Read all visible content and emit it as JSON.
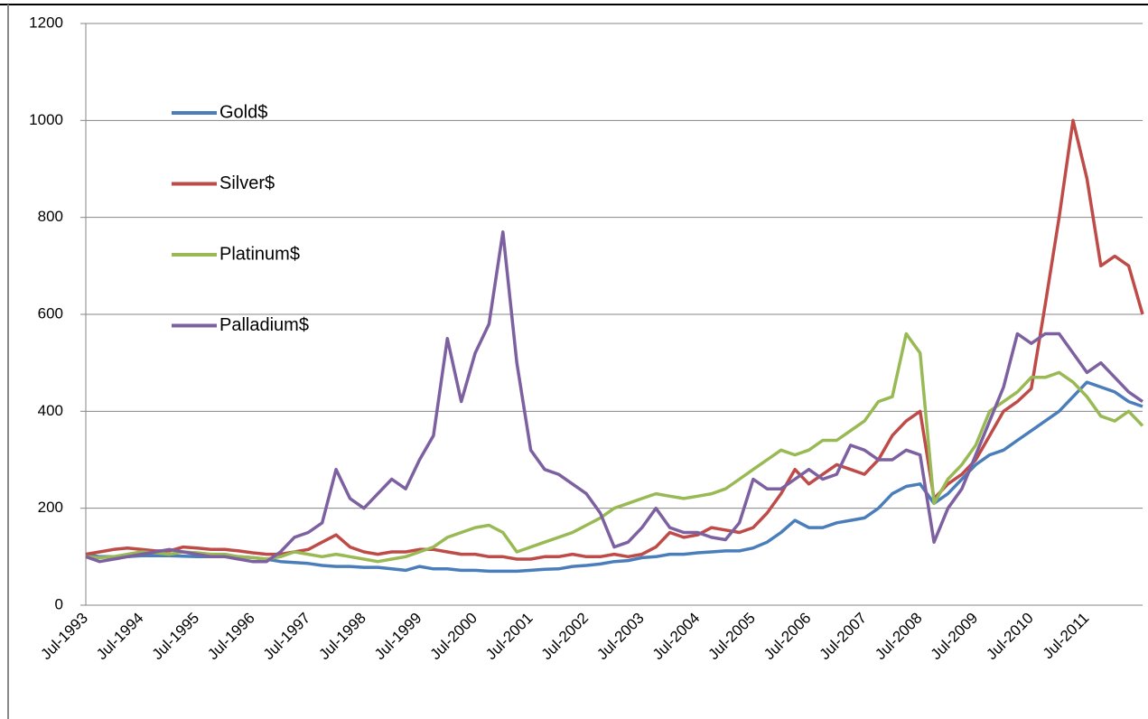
{
  "chart_data": {
    "type": "line",
    "categories": [
      "Jul-1993",
      null,
      null,
      null,
      "Jul-1994",
      null,
      null,
      null,
      "Jul-1995",
      null,
      null,
      null,
      "Jul-1996",
      null,
      null,
      null,
      "Jul-1997",
      null,
      null,
      null,
      "Jul-1998",
      null,
      null,
      null,
      "Jul-1999",
      null,
      null,
      null,
      "Jul-2000",
      null,
      null,
      null,
      "Jul-2001",
      null,
      null,
      null,
      "Jul-2002",
      null,
      null,
      null,
      "Jul-2003",
      null,
      null,
      null,
      "Jul-2004",
      null,
      null,
      null,
      "Jul-2005",
      null,
      null,
      null,
      "Jul-2006",
      null,
      null,
      null,
      "Jul-2007",
      null,
      null,
      null,
      "Jul-2008",
      null,
      null,
      null,
      "Jul-2009",
      null,
      null,
      null,
      "Jul-2010",
      null,
      null,
      null,
      "Jul-2011",
      null,
      null,
      null,
      null
    ],
    "series": [
      {
        "name": "Gold$",
        "color": "#4a7ebb",
        "values": [
          105,
          100,
          100,
          100,
          102,
          102,
          102,
          101,
          100,
          100,
          102,
          100,
          98,
          95,
          90,
          88,
          86,
          82,
          80,
          80,
          78,
          78,
          75,
          72,
          80,
          75,
          75,
          72,
          72,
          70,
          70,
          70,
          72,
          74,
          75,
          80,
          82,
          85,
          90,
          92,
          98,
          100,
          105,
          105,
          108,
          110,
          112,
          112,
          118,
          130,
          150,
          175,
          160,
          160,
          170,
          175,
          180,
          200,
          230,
          245,
          250,
          210,
          230,
          260,
          290,
          310,
          320,
          340,
          360,
          380,
          400,
          430,
          460,
          450,
          440,
          420,
          410
        ]
      },
      {
        "name": "Silver$",
        "color": "#be4b48",
        "values": [
          105,
          110,
          115,
          118,
          115,
          112,
          112,
          120,
          118,
          115,
          115,
          112,
          108,
          105,
          105,
          110,
          115,
          130,
          145,
          120,
          110,
          105,
          110,
          110,
          115,
          115,
          110,
          105,
          105,
          100,
          100,
          95,
          95,
          100,
          100,
          105,
          100,
          100,
          105,
          100,
          105,
          120,
          150,
          140,
          145,
          160,
          155,
          150,
          160,
          190,
          230,
          280,
          250,
          270,
          290,
          280,
          270,
          300,
          350,
          380,
          400,
          220,
          250,
          270,
          300,
          350,
          400,
          420,
          447,
          620,
          800,
          1000,
          880,
          700,
          720,
          700,
          600
        ]
      },
      {
        "name": "Platinum$",
        "color": "#98b954",
        "values": [
          100,
          98,
          100,
          105,
          110,
          108,
          105,
          110,
          108,
          105,
          105,
          100,
          98,
          95,
          100,
          110,
          105,
          100,
          105,
          100,
          95,
          90,
          95,
          100,
          110,
          120,
          140,
          150,
          160,
          165,
          150,
          110,
          120,
          130,
          140,
          150,
          165,
          180,
          200,
          210,
          220,
          230,
          225,
          220,
          225,
          230,
          240,
          260,
          280,
          300,
          320,
          310,
          320,
          340,
          340,
          360,
          380,
          420,
          430,
          560,
          520,
          210,
          260,
          290,
          330,
          400,
          420,
          440,
          470,
          470,
          480,
          460,
          430,
          390,
          380,
          400,
          370
        ]
      },
      {
        "name": "Palladium$",
        "color": "#7d60a0",
        "values": [
          100,
          90,
          95,
          100,
          105,
          110,
          115,
          110,
          105,
          100,
          100,
          95,
          90,
          90,
          110,
          140,
          150,
          170,
          280,
          220,
          200,
          230,
          260,
          240,
          300,
          350,
          550,
          420,
          520,
          580,
          770,
          500,
          320,
          280,
          270,
          250,
          230,
          190,
          120,
          130,
          160,
          200,
          160,
          150,
          150,
          140,
          135,
          170,
          260,
          240,
          240,
          260,
          280,
          260,
          270,
          330,
          320,
          300,
          300,
          320,
          310,
          130,
          200,
          240,
          310,
          380,
          450,
          560,
          540,
          560,
          560,
          520,
          480,
          500,
          470,
          440,
          420
        ]
      }
    ],
    "ylim": [
      0,
      1200
    ],
    "yticks": [
      0,
      200,
      400,
      600,
      800,
      1000,
      1200
    ],
    "grid": true
  }
}
